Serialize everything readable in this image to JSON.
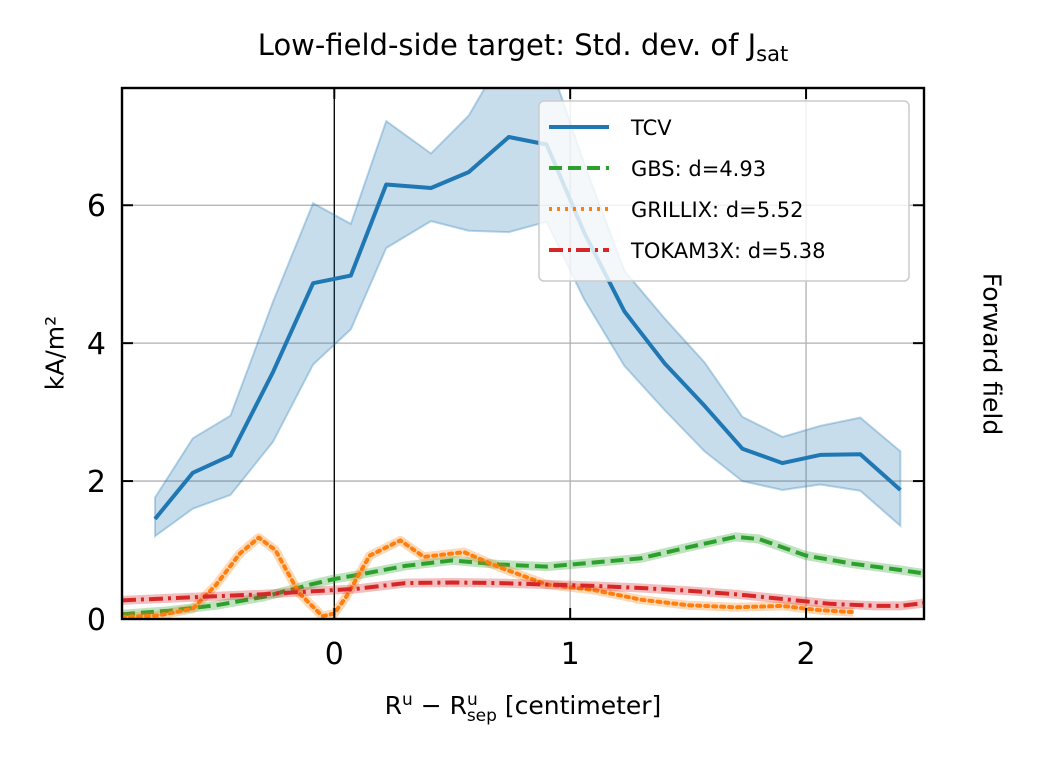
{
  "title": {
    "main": "Low-field-side target: Std. dev. of J",
    "subscript": "sat"
  },
  "side_label": "Forward field",
  "chart_data": {
    "type": "line",
    "ylabel": "kA/m²",
    "xlabel": {
      "base1": "R",
      "sup1": "u",
      "minus": " − ",
      "base2": "R",
      "sup2": "u",
      "sub2": "sep",
      "unit": " [centimeter]"
    },
    "xlim": [
      -0.9,
      2.5
    ],
    "ylim": [
      0,
      7.7
    ],
    "xticks": [
      0,
      1,
      2
    ],
    "yticks": [
      0,
      2,
      4,
      6
    ],
    "grid": true,
    "legend_position": "top-right",
    "vertical_line_x": 0,
    "series": [
      {
        "name": "TCV",
        "style": "solid",
        "color": "#1f77b4",
        "x": [
          -0.76,
          -0.6,
          -0.44,
          -0.26,
          -0.09,
          0.07,
          0.22,
          0.41,
          0.57,
          0.74,
          0.9,
          1.06,
          1.23,
          1.4,
          1.57,
          1.73,
          1.9,
          2.06,
          2.23,
          2.4
        ],
        "y": [
          1.45,
          2.12,
          2.37,
          3.58,
          4.87,
          4.98,
          6.3,
          6.25,
          6.48,
          6.99,
          6.88,
          5.6,
          4.46,
          3.71,
          3.09,
          2.47,
          2.26,
          2.38,
          2.39,
          1.87
        ],
        "band_upper": [
          1.76,
          2.62,
          2.95,
          4.6,
          6.03,
          5.73,
          7.22,
          6.75,
          7.3,
          8.3,
          8.2,
          6.6,
          5.05,
          4.36,
          3.72,
          2.93,
          2.64,
          2.8,
          2.92,
          2.43
        ],
        "band_lower": [
          1.2,
          1.6,
          1.8,
          2.57,
          3.69,
          4.2,
          5.38,
          5.77,
          5.63,
          5.61,
          5.76,
          4.63,
          3.67,
          3.03,
          2.43,
          2.0,
          1.87,
          1.95,
          1.86,
          1.35
        ]
      },
      {
        "name": "GBS: d=4.93",
        "style": "dashed",
        "color": "#2ca02c",
        "x": [
          -0.9,
          -0.7,
          -0.5,
          -0.3,
          -0.1,
          0.0,
          0.1,
          0.3,
          0.5,
          0.7,
          0.9,
          1.1,
          1.3,
          1.5,
          1.7,
          1.8,
          2.0,
          2.2,
          2.4,
          2.5
        ],
        "y": [
          0.07,
          0.12,
          0.2,
          0.32,
          0.5,
          0.58,
          0.64,
          0.77,
          0.85,
          0.79,
          0.76,
          0.82,
          0.88,
          1.04,
          1.19,
          1.16,
          0.92,
          0.8,
          0.71,
          0.66
        ]
      },
      {
        "name": "GRILLIX: d=5.52",
        "style": "dotted",
        "color": "#ff7f0e",
        "x": [
          -0.9,
          -0.75,
          -0.6,
          -0.5,
          -0.4,
          -0.32,
          -0.25,
          -0.15,
          -0.05,
          0.0,
          0.05,
          0.15,
          0.28,
          0.38,
          0.55,
          0.7,
          0.9,
          1.1,
          1.3,
          1.5,
          1.7,
          1.9,
          2.05,
          2.2
        ],
        "y": [
          0.03,
          0.05,
          0.15,
          0.5,
          0.95,
          1.18,
          1.0,
          0.38,
          0.04,
          0.08,
          0.32,
          0.92,
          1.14,
          0.9,
          0.97,
          0.75,
          0.5,
          0.42,
          0.28,
          0.2,
          0.17,
          0.19,
          0.13,
          0.1
        ]
      },
      {
        "name": "TOKAM3X: d=5.38",
        "style": "dashdot",
        "color": "#d62728",
        "x": [
          -0.9,
          -0.7,
          -0.5,
          -0.3,
          -0.1,
          0.1,
          0.3,
          0.5,
          0.7,
          0.9,
          1.1,
          1.3,
          1.5,
          1.7,
          1.9,
          2.1,
          2.3,
          2.4,
          2.5
        ],
        "y": [
          0.27,
          0.3,
          0.33,
          0.36,
          0.4,
          0.44,
          0.52,
          0.53,
          0.52,
          0.5,
          0.48,
          0.45,
          0.41,
          0.36,
          0.29,
          0.22,
          0.19,
          0.19,
          0.23
        ]
      }
    ]
  }
}
